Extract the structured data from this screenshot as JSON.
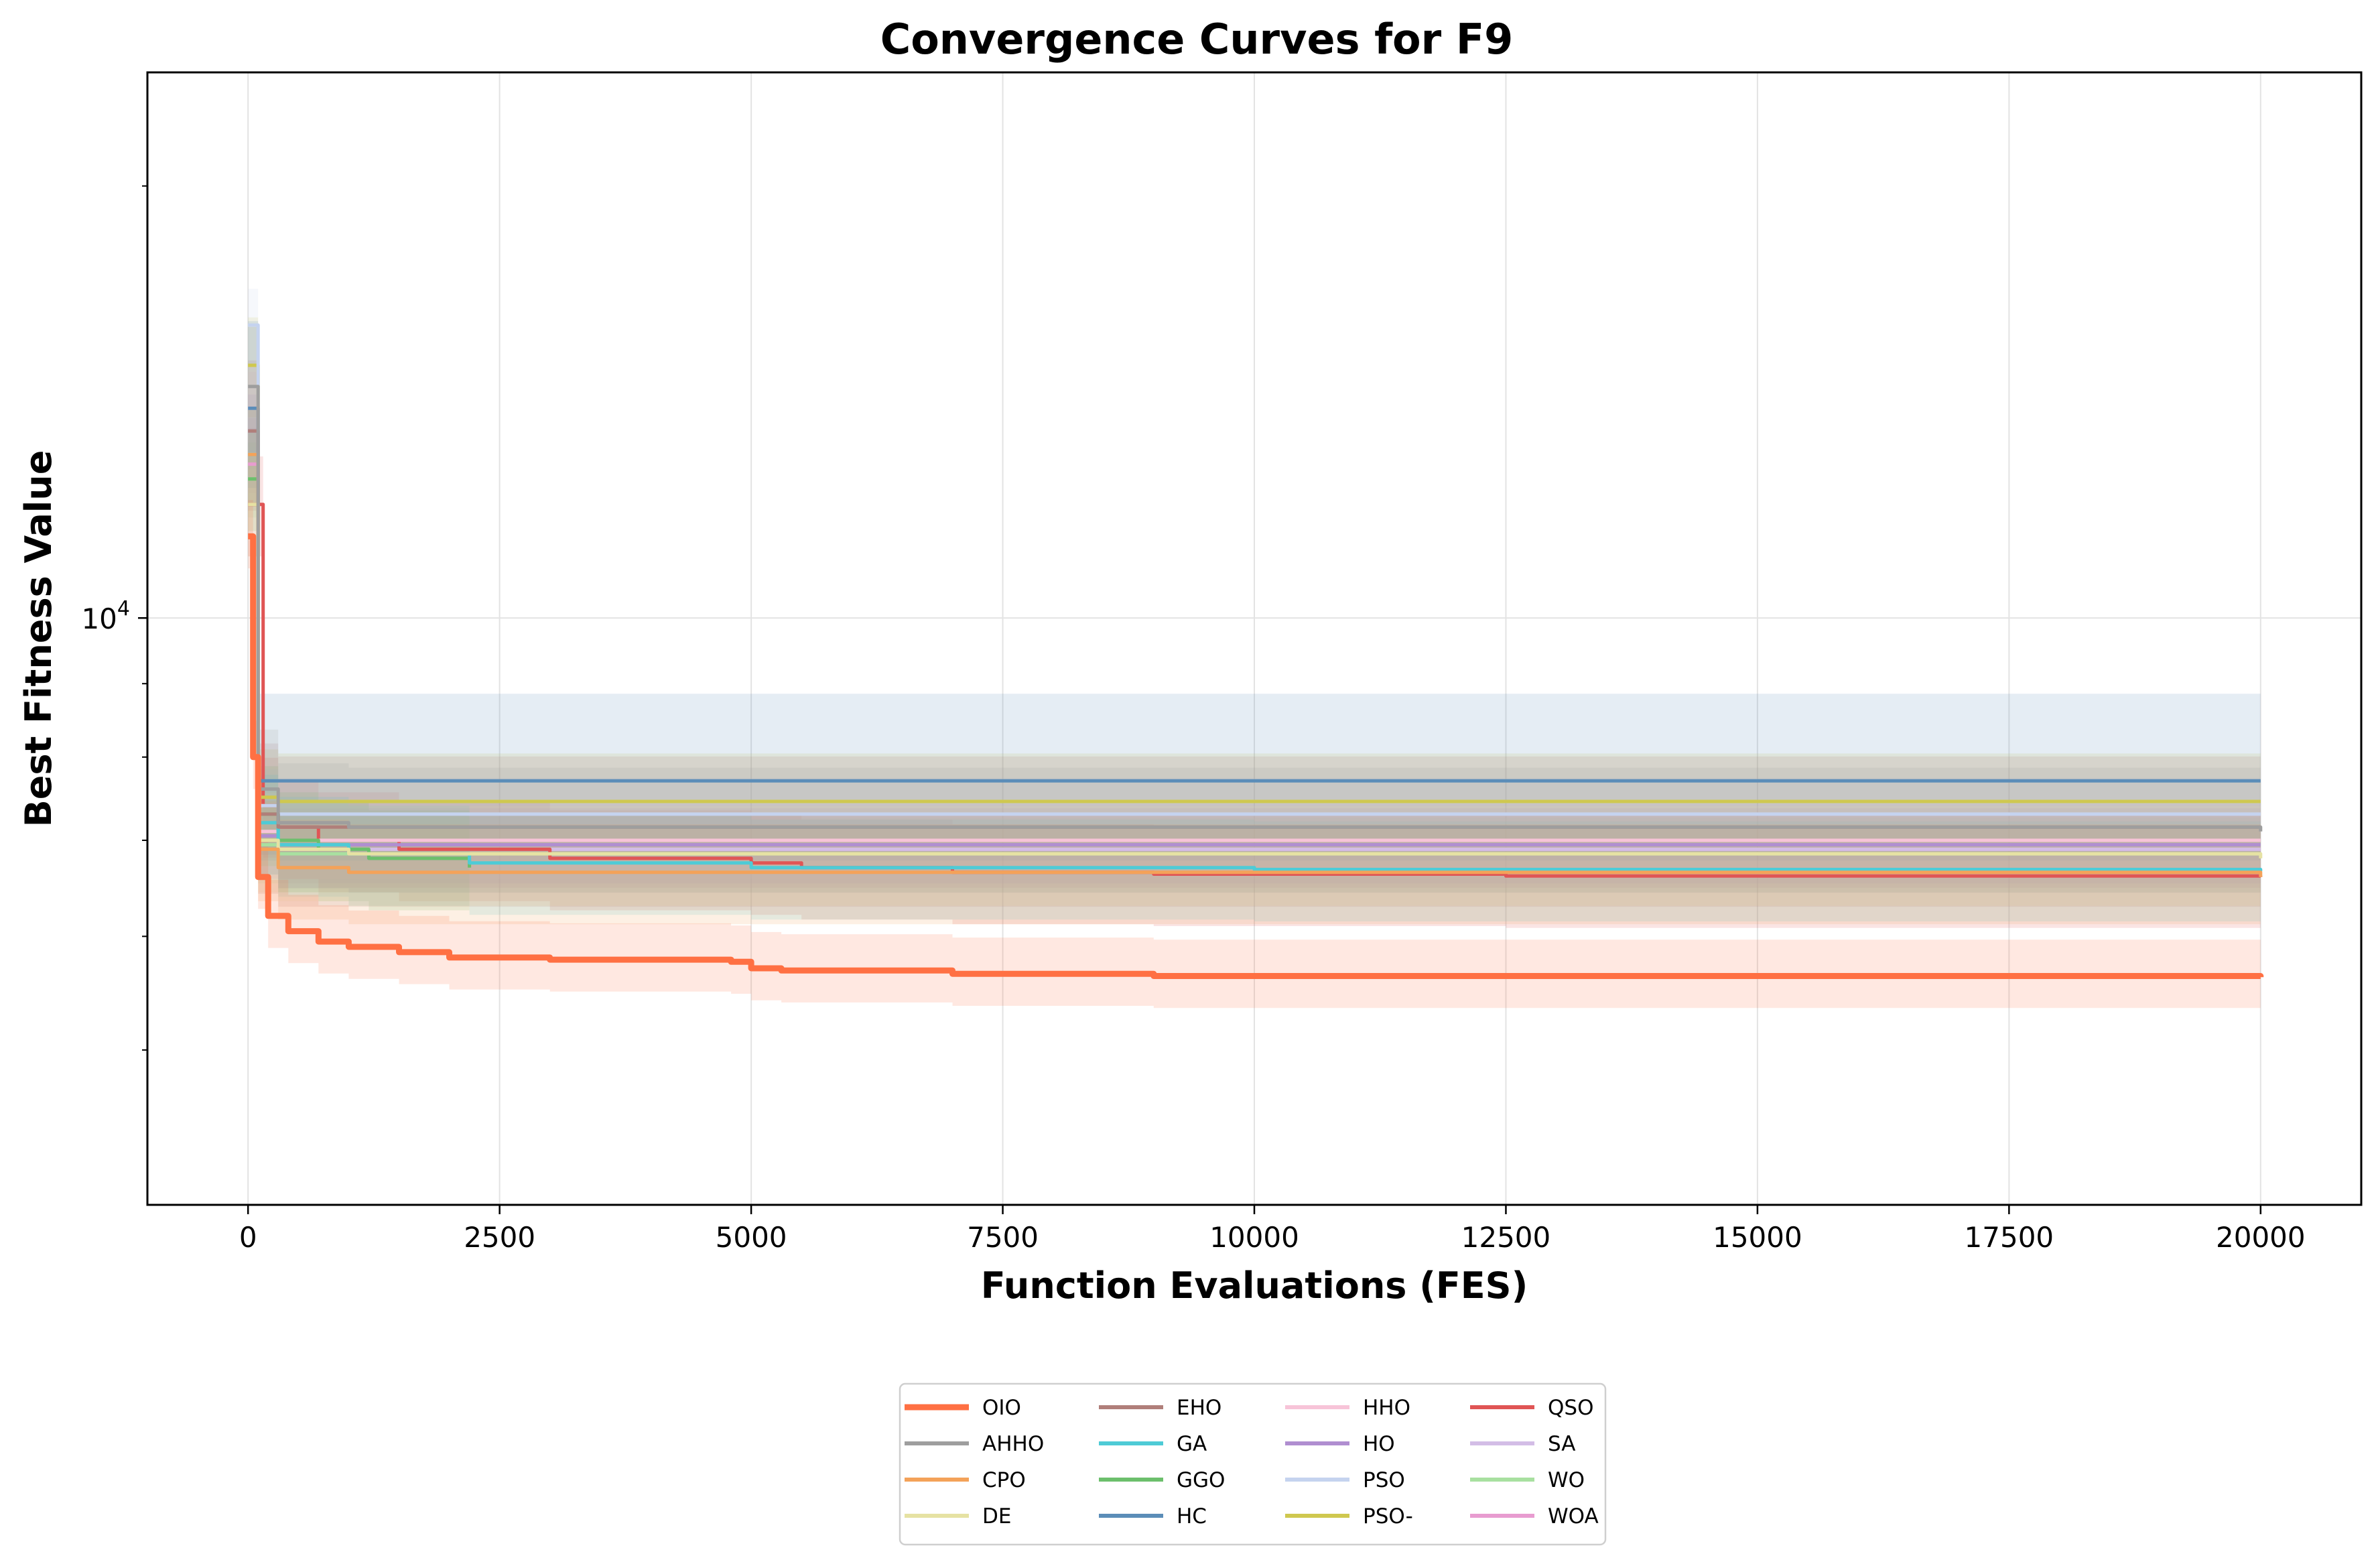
{
  "chart_data": {
    "type": "line",
    "title": "Convergence Curves for F9",
    "xlabel": "Function Evaluations (FES)",
    "ylabel": "Best Fitness Value",
    "xlim": [
      -1000,
      21000
    ],
    "ylim": [
      3900,
      24000
    ],
    "yscale": "log",
    "x_ticks": [
      0,
      2500,
      5000,
      7500,
      10000,
      12500,
      15000,
      17500,
      20000
    ],
    "x_tick_labels": [
      "0",
      "2500",
      "5000",
      "7500",
      "10000",
      "12500",
      "15000",
      "17500",
      "20000"
    ],
    "y_major_ticks": [
      10000
    ],
    "y_major_label_base": "10",
    "y_major_label_exp": "4",
    "y_minor_ticks": [
      5000,
      6000,
      7000,
      8000,
      9000,
      20000
    ],
    "grid": true,
    "legend_position": "below",
    "series": [
      {
        "name": "OIO",
        "color": "#ff7043",
        "band": [
          0.06,
          0.05
        ],
        "width": 9,
        "x": [
          0,
          50,
          100,
          200,
          400,
          700,
          1000,
          1500,
          2000,
          3000,
          4800,
          5000,
          5300,
          7000,
          9000,
          20000
        ],
        "y": [
          11400,
          8000,
          6600,
          6200,
          6050,
          5950,
          5900,
          5850,
          5800,
          5780,
          5760,
          5700,
          5680,
          5650,
          5630,
          5620
        ]
      },
      {
        "name": "AHHO",
        "color": "#9e9e9e",
        "band": [
          0.1,
          0.1
        ],
        "x": [
          0,
          100,
          300,
          1000,
          20000
        ],
        "y": [
          14500,
          7600,
          7200,
          7150,
          7100
        ]
      },
      {
        "name": "CPO",
        "color": "#f4a259",
        "band": [
          0.08,
          0.08
        ],
        "x": [
          0,
          100,
          300,
          1000,
          20000
        ],
        "y": [
          13000,
          6900,
          6700,
          6650,
          6600
        ]
      },
      {
        "name": "DE",
        "color": "#e6e2a3",
        "band": [
          0.08,
          0.08
        ],
        "x": [
          0,
          100,
          300,
          1000,
          20000
        ],
        "y": [
          12000,
          7000,
          6900,
          6850,
          6800
        ]
      },
      {
        "name": "EHO",
        "color": "#b07f7a",
        "band": [
          0.12,
          0.12
        ],
        "x": [
          0,
          100,
          300,
          20000
        ],
        "y": [
          13500,
          7300,
          7150,
          7150
        ]
      },
      {
        "name": "GA",
        "color": "#4ecbd6",
        "band": [
          0.08,
          0.08
        ],
        "x": [
          0,
          100,
          300,
          1000,
          2200,
          5000,
          10000,
          20000
        ],
        "y": [
          13000,
          7200,
          6950,
          6850,
          6750,
          6700,
          6680,
          6660
        ]
      },
      {
        "name": "GGO",
        "color": "#6cbf6c",
        "band": [
          0.08,
          0.08
        ],
        "x": [
          0,
          100,
          300,
          700,
          1200,
          2200
        ],
        "y": [
          12500,
          7300,
          7000,
          6900,
          6800,
          6700
        ]
      },
      {
        "name": "HC",
        "color": "#5b8db8",
        "band": [
          0.15,
          0.12
        ],
        "x": [
          0,
          100,
          20000
        ],
        "y": [
          14000,
          7700,
          7700
        ]
      },
      {
        "name": "HHO",
        "color": "#f7c4d8",
        "band": [
          0.06,
          0.06
        ],
        "x": [
          0,
          100,
          300,
          20000
        ],
        "y": [
          14000,
          7100,
          7000,
          7000
        ]
      },
      {
        "name": "HO",
        "color": "#b08ed0",
        "band": [
          0.06,
          0.06
        ],
        "x": [
          0,
          100,
          300,
          20000
        ],
        "y": [
          13500,
          7050,
          6950,
          6950
        ]
      },
      {
        "name": "PSO",
        "color": "#c5d3ef",
        "band": [
          0.06,
          0.06
        ],
        "x": [
          0,
          100,
          300,
          20000
        ],
        "y": [
          16000,
          7400,
          7300,
          7300
        ]
      },
      {
        "name": "PSO-",
        "color": "#cfc84f",
        "band": [
          0.08,
          0.08
        ],
        "x": [
          0,
          100,
          300,
          20000
        ],
        "y": [
          15000,
          7500,
          7450,
          7450
        ]
      },
      {
        "name": "QSO",
        "color": "#e05555",
        "band": [
          0.08,
          0.08
        ],
        "x": [
          0,
          150,
          300,
          700,
          1500,
          3000,
          5000,
          5500,
          7000,
          9000,
          12500,
          20000
        ],
        "y": [
          12000,
          7400,
          7150,
          7000,
          6900,
          6800,
          6750,
          6700,
          6650,
          6630,
          6610,
          6600
        ]
      },
      {
        "name": "SA",
        "color": "#d3bde6",
        "band": [
          0.06,
          0.06
        ],
        "x": [
          0,
          100,
          300,
          20000
        ],
        "y": [
          13000,
          7000,
          6900,
          6900
        ]
      },
      {
        "name": "WO",
        "color": "#a8e0a0",
        "band": [
          0.06,
          0.06
        ],
        "x": [
          0,
          100,
          300,
          20000
        ],
        "y": [
          12500,
          6950,
          6850,
          6850
        ]
      },
      {
        "name": "WOA",
        "color": "#e89cd0",
        "band": [
          0.06,
          0.06
        ],
        "x": [
          0,
          100,
          300,
          20000
        ],
        "y": [
          12800,
          7000,
          6900,
          6900
        ]
      }
    ]
  }
}
